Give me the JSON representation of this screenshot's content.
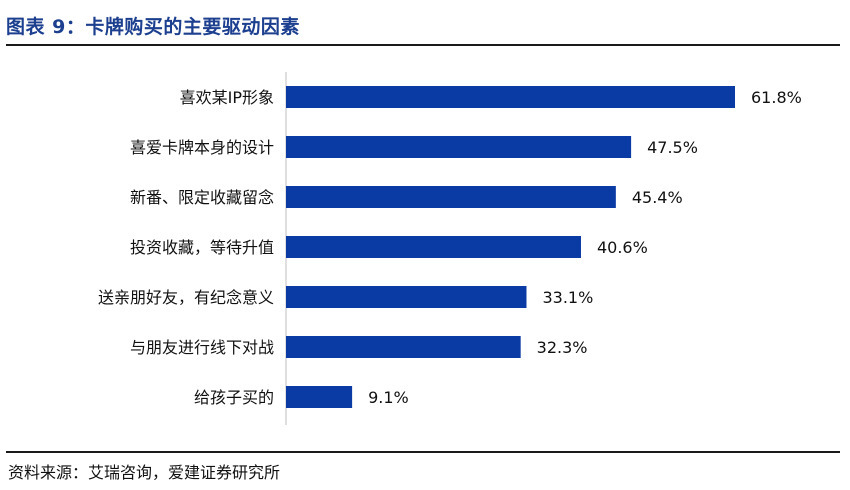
{
  "title": "图表 9：卡牌购买的主要驱动因素",
  "source": "资料来源：艾瑞咨询，爱建证券研究所",
  "colors": {
    "bar": "#0a3aa4",
    "title": "#1c3f8f",
    "axis": "#bfbfbf"
  },
  "chart_data": {
    "type": "bar",
    "orientation": "horizontal",
    "categories": [
      "喜欢某IP形象",
      "喜爱卡牌本身的设计",
      "新番、限定收藏留念",
      "投资收藏，等待升值",
      "送亲朋好友，有纪念意义",
      "与朋友进行线下对战",
      "给孩子买的"
    ],
    "values": [
      61.8,
      47.5,
      45.4,
      40.6,
      33.1,
      32.3,
      9.1
    ],
    "data_labels": [
      "61.8%",
      "47.5%",
      "45.4%",
      "40.6%",
      "33.1%",
      "32.3%",
      "9.1%"
    ],
    "xlim": [
      0,
      70
    ],
    "unit": "%",
    "grid": false,
    "legend": "none"
  }
}
